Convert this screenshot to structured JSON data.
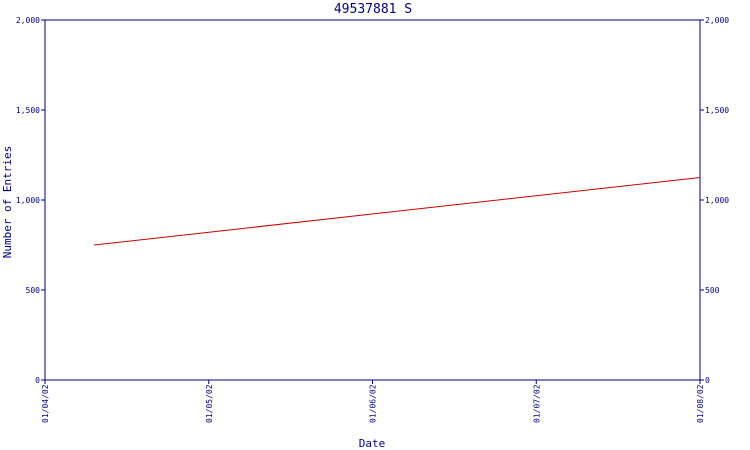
{
  "chart_data": {
    "type": "line",
    "title": "49537881 S",
    "xlabel": "Date",
    "ylabel": "Number of Entries",
    "x_tick_labels": [
      "01/04/02",
      "01/05/02",
      "01/06/02",
      "01/07/02",
      "01/08/02"
    ],
    "ylim": [
      0,
      2000
    ],
    "y_ticks": [
      0,
      500,
      1000,
      1500,
      2000
    ],
    "y_tick_labels": [
      "0",
      "500",
      "1,000",
      "1,500",
      "2,000"
    ],
    "right_y_tick_labels": [
      "0",
      "500",
      "1,000",
      "1,500",
      "2,000"
    ],
    "series": [
      {
        "x": [
          "01/04/02",
          "01/08/02"
        ],
        "x_approx": [
          0.3,
          4.0
        ],
        "values": [
          750,
          1125
        ]
      }
    ],
    "grid": false
  },
  "colors": {
    "axis": "#000080",
    "line": "#cc0000",
    "background": "#ffffff"
  }
}
